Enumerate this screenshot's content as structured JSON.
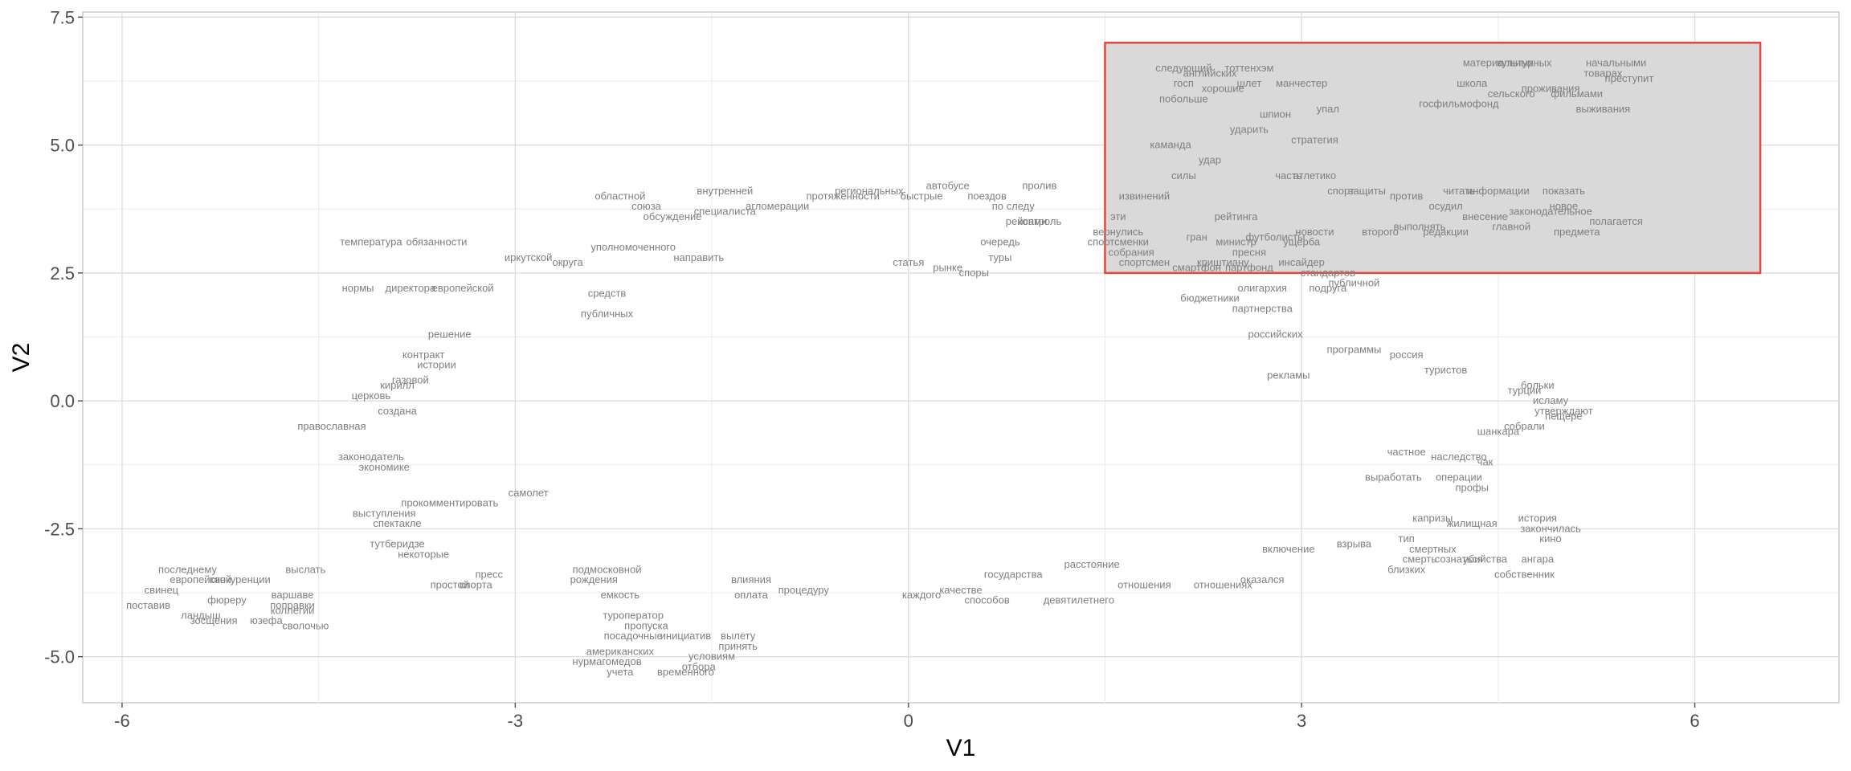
{
  "chart_data": {
    "type": "scatter",
    "title": "",
    "xlabel": "V1",
    "ylabel": "V2",
    "xlim": [
      -6.3,
      7.1
    ],
    "ylim": [
      -5.9,
      7.6
    ],
    "x_ticks": [
      -6,
      -3,
      0,
      3,
      6
    ],
    "x_tick_labels": [
      "-6",
      "-3",
      "0",
      "3",
      "6"
    ],
    "y_ticks": [
      -5.0,
      -2.5,
      0.0,
      2.5,
      5.0,
      7.5
    ],
    "y_tick_labels": [
      "-5.0",
      "-2.5",
      "0.0",
      "2.5",
      "5.0",
      "7.5"
    ],
    "grid": true,
    "label_color": "#7f7f7f",
    "highlight_region": {
      "x": [
        1.5,
        6.5
      ],
      "y": [
        2.5,
        7.0
      ],
      "fill": "#d9d9d9",
      "stroke": "#e8473b"
    },
    "points": [
      {
        "x": -5.5,
        "y": -3.3,
        "label": "последнему"
      },
      {
        "x": -5.4,
        "y": -3.5,
        "label": "европейской"
      },
      {
        "x": -5.1,
        "y": -3.5,
        "label": "конкуренции"
      },
      {
        "x": -4.6,
        "y": -3.3,
        "label": "выслать"
      },
      {
        "x": -5.7,
        "y": -3.7,
        "label": "свинец"
      },
      {
        "x": -5.2,
        "y": -3.9,
        "label": "фюреру"
      },
      {
        "x": -5.8,
        "y": -4.0,
        "label": "поставив"
      },
      {
        "x": -5.4,
        "y": -4.2,
        "label": "ландыш"
      },
      {
        "x": -5.3,
        "y": -4.3,
        "label": "зосщения"
      },
      {
        "x": -4.7,
        "y": -3.8,
        "label": "варшаве"
      },
      {
        "x": -4.7,
        "y": -4.0,
        "label": "поправки"
      },
      {
        "x": -4.7,
        "y": -4.1,
        "label": "коллегии"
      },
      {
        "x": -4.9,
        "y": -4.3,
        "label": "юзефа"
      },
      {
        "x": -4.6,
        "y": -4.4,
        "label": "сволочью"
      },
      {
        "x": -4.1,
        "y": 3.1,
        "label": "температура"
      },
      {
        "x": -3.6,
        "y": 3.1,
        "label": "обязанности"
      },
      {
        "x": -4.2,
        "y": 2.2,
        "label": "нормы"
      },
      {
        "x": -3.8,
        "y": 2.2,
        "label": "директора"
      },
      {
        "x": -3.4,
        "y": 2.2,
        "label": "европейской"
      },
      {
        "x": -2.9,
        "y": 2.8,
        "label": "иркутской"
      },
      {
        "x": -2.6,
        "y": 2.7,
        "label": "округа"
      },
      {
        "x": -4.4,
        "y": -0.5,
        "label": "православная"
      },
      {
        "x": -3.9,
        "y": -0.2,
        "label": "создана"
      },
      {
        "x": -4.1,
        "y": 0.1,
        "label": "церковь"
      },
      {
        "x": -3.9,
        "y": 0.3,
        "label": "кирилл"
      },
      {
        "x": -4.1,
        "y": -1.1,
        "label": "законодатель"
      },
      {
        "x": -4.0,
        "y": -1.3,
        "label": "экономике"
      },
      {
        "x": -4.0,
        "y": -2.2,
        "label": "выступления"
      },
      {
        "x": -3.9,
        "y": -2.4,
        "label": "спектакле"
      },
      {
        "x": -3.9,
        "y": -2.8,
        "label": "тутберидзе"
      },
      {
        "x": -3.7,
        "y": -3.0,
        "label": "некоторые"
      },
      {
        "x": -3.5,
        "y": -3.6,
        "label": "простой"
      },
      {
        "x": -3.3,
        "y": -3.6,
        "label": "спорта"
      },
      {
        "x": -3.5,
        "y": 1.3,
        "label": "решение"
      },
      {
        "x": -3.7,
        "y": 0.9,
        "label": "контракт"
      },
      {
        "x": -3.6,
        "y": 0.7,
        "label": "истории"
      },
      {
        "x": -3.8,
        "y": 0.4,
        "label": "газовой"
      },
      {
        "x": -3.5,
        "y": -2.0,
        "label": "прокомментировать"
      },
      {
        "x": -2.9,
        "y": -1.8,
        "label": "самолет"
      },
      {
        "x": -2.4,
        "y": -3.5,
        "label": "рождения"
      },
      {
        "x": -2.3,
        "y": -3.3,
        "label": "подмосковной"
      },
      {
        "x": -3.2,
        "y": -3.4,
        "label": "пресс"
      },
      {
        "x": -2.2,
        "y": 4.0,
        "label": "областной"
      },
      {
        "x": -2.0,
        "y": 3.8,
        "label": "союза"
      },
      {
        "x": -1.4,
        "y": 3.7,
        "label": "специалиста"
      },
      {
        "x": -1.8,
        "y": 3.6,
        "label": "обсуждение"
      },
      {
        "x": -2.1,
        "y": 3.0,
        "label": "уполномоченного"
      },
      {
        "x": -1.6,
        "y": 2.8,
        "label": "направить"
      },
      {
        "x": -2.3,
        "y": 2.1,
        "label": "средств"
      },
      {
        "x": -2.3,
        "y": 1.7,
        "label": "публичных"
      },
      {
        "x": -1.4,
        "y": 4.1,
        "label": "внутренней"
      },
      {
        "x": -1.0,
        "y": 3.8,
        "label": "агломерации"
      },
      {
        "x": -0.5,
        "y": 4.0,
        "label": "протяженности"
      },
      {
        "x": -0.3,
        "y": 4.1,
        "label": "региональных"
      },
      {
        "x": 0.3,
        "y": 4.2,
        "label": "автобусе"
      },
      {
        "x": 0.1,
        "y": 4.0,
        "label": "быстрые"
      },
      {
        "x": 0.6,
        "y": 4.0,
        "label": "поездов"
      },
      {
        "x": 0.8,
        "y": 3.8,
        "label": "по следу"
      },
      {
        "x": 0.9,
        "y": 3.5,
        "label": "рейсами"
      },
      {
        "x": 1.0,
        "y": 3.5,
        "label": "контроль"
      },
      {
        "x": 0.7,
        "y": 3.1,
        "label": "очередь"
      },
      {
        "x": 0.3,
        "y": 2.6,
        "label": "рынке"
      },
      {
        "x": 0.0,
        "y": 2.7,
        "label": "статья"
      },
      {
        "x": 0.7,
        "y": 2.8,
        "label": "туры"
      },
      {
        "x": 0.5,
        "y": 2.5,
        "label": "споры"
      },
      {
        "x": 1.0,
        "y": 4.2,
        "label": "пролив"
      },
      {
        "x": -1.2,
        "y": -3.5,
        "label": "влияния"
      },
      {
        "x": -2.2,
        "y": -3.8,
        "label": "емкость"
      },
      {
        "x": -2.1,
        "y": -4.2,
        "label": "туроператор"
      },
      {
        "x": -2.0,
        "y": -4.4,
        "label": "пропуска"
      },
      {
        "x": -2.1,
        "y": -4.6,
        "label": "посадочные"
      },
      {
        "x": -1.7,
        "y": -4.6,
        "label": "инициатив"
      },
      {
        "x": -2.2,
        "y": -4.9,
        "label": "американских"
      },
      {
        "x": -2.3,
        "y": -5.1,
        "label": "нурмагомедов"
      },
      {
        "x": -1.5,
        "y": -5.0,
        "label": "условиям"
      },
      {
        "x": -1.3,
        "y": -4.6,
        "label": "вылету"
      },
      {
        "x": -1.3,
        "y": -4.8,
        "label": "принять"
      },
      {
        "x": -2.2,
        "y": -5.3,
        "label": "учета"
      },
      {
        "x": -1.7,
        "y": -5.3,
        "label": "временного"
      },
      {
        "x": -1.6,
        "y": -5.2,
        "label": "отбора"
      },
      {
        "x": -0.8,
        "y": -3.7,
        "label": "процедуру"
      },
      {
        "x": -1.2,
        "y": -3.8,
        "label": "оплата"
      },
      {
        "x": 0.1,
        "y": -3.8,
        "label": "каждого"
      },
      {
        "x": 0.4,
        "y": -3.7,
        "label": "качестве"
      },
      {
        "x": 0.6,
        "y": -3.9,
        "label": "способов"
      },
      {
        "x": 1.3,
        "y": -3.9,
        "label": "девятилетнего"
      },
      {
        "x": 1.4,
        "y": -3.2,
        "label": "расстояние"
      },
      {
        "x": 0.8,
        "y": -3.4,
        "label": "государства"
      },
      {
        "x": 1.8,
        "y": -3.6,
        "label": "отношения"
      },
      {
        "x": 2.4,
        "y": -3.6,
        "label": "отношениях"
      },
      {
        "x": 2.7,
        "y": -3.5,
        "label": "оказался"
      },
      {
        "x": 2.9,
        "y": -2.9,
        "label": "включение"
      },
      {
        "x": 3.4,
        "y": -2.8,
        "label": "взрыва"
      },
      {
        "x": 3.8,
        "y": -2.7,
        "label": "тип"
      },
      {
        "x": 4.0,
        "y": -2.9,
        "label": "смертных"
      },
      {
        "x": 3.9,
        "y": -3.1,
        "label": "смерть"
      },
      {
        "x": 3.8,
        "y": -3.3,
        "label": "близких"
      },
      {
        "x": 4.2,
        "y": -3.1,
        "label": "сознаться"
      },
      {
        "x": 4.4,
        "y": -3.1,
        "label": "убийства"
      },
      {
        "x": 4.7,
        "y": -3.4,
        "label": "собственник"
      },
      {
        "x": 4.8,
        "y": -3.1,
        "label": "ангара"
      },
      {
        "x": 4.9,
        "y": -2.7,
        "label": "кино"
      },
      {
        "x": 4.9,
        "y": -2.5,
        "label": "закончилась"
      },
      {
        "x": 4.8,
        "y": -2.3,
        "label": "история"
      },
      {
        "x": 4.3,
        "y": -2.4,
        "label": "жилищная"
      },
      {
        "x": 4.0,
        "y": -2.3,
        "label": "капризы"
      },
      {
        "x": 4.3,
        "y": -1.7,
        "label": "профы"
      },
      {
        "x": 3.7,
        "y": -1.5,
        "label": "выработать"
      },
      {
        "x": 4.2,
        "y": -1.5,
        "label": "операции"
      },
      {
        "x": 3.8,
        "y": -1.0,
        "label": "частное"
      },
      {
        "x": 4.2,
        "y": -1.1,
        "label": "наследство"
      },
      {
        "x": 4.4,
        "y": -1.2,
        "label": "чак"
      },
      {
        "x": 4.5,
        "y": -0.6,
        "label": "шанкара"
      },
      {
        "x": 4.7,
        "y": -0.5,
        "label": "собрали"
      },
      {
        "x": 5.0,
        "y": -0.3,
        "label": "пещере"
      },
      {
        "x": 5.0,
        "y": -0.2,
        "label": "утверждают"
      },
      {
        "x": 4.7,
        "y": 0.2,
        "label": "турции"
      },
      {
        "x": 4.9,
        "y": 0.0,
        "label": "исламу"
      },
      {
        "x": 4.8,
        "y": 0.3,
        "label": "больки"
      },
      {
        "x": 4.1,
        "y": 0.6,
        "label": "туристов"
      },
      {
        "x": 3.8,
        "y": 0.9,
        "label": "россия"
      },
      {
        "x": 3.4,
        "y": 1.0,
        "label": "программы"
      },
      {
        "x": 2.8,
        "y": 1.3,
        "label": "российских"
      },
      {
        "x": 2.9,
        "y": 0.5,
        "label": "рекламы"
      },
      {
        "x": 2.7,
        "y": 1.8,
        "label": "партнерства"
      },
      {
        "x": 2.3,
        "y": 2.0,
        "label": "бюджетники"
      },
      {
        "x": 2.7,
        "y": 2.2,
        "label": "олигархия"
      },
      {
        "x": 3.2,
        "y": 2.2,
        "label": "подруга"
      },
      {
        "x": 3.4,
        "y": 2.3,
        "label": "публичной"
      },
      {
        "x": 3.2,
        "y": 2.5,
        "label": "стандартов"
      },
      {
        "x": 3.0,
        "y": 2.7,
        "label": "инсайдер"
      },
      {
        "x": 2.6,
        "y": 2.6,
        "label": "партфонд"
      },
      {
        "x": 2.2,
        "y": 2.6,
        "label": "смартфон"
      },
      {
        "x": 1.8,
        "y": 2.7,
        "label": "спортсмен"
      },
      {
        "x": 1.6,
        "y": 3.6,
        "label": "эти"
      },
      {
        "x": 1.6,
        "y": 3.3,
        "label": "вернулись"
      },
      {
        "x": 1.6,
        "y": 3.1,
        "label": "спортсменки"
      },
      {
        "x": 1.7,
        "y": 2.9,
        "label": "собрания"
      },
      {
        "x": 1.8,
        "y": 4.0,
        "label": "извинений"
      },
      {
        "x": 2.2,
        "y": 3.2,
        "label": "гран"
      },
      {
        "x": 2.5,
        "y": 3.1,
        "label": "министр"
      },
      {
        "x": 2.8,
        "y": 3.2,
        "label": "футболисты"
      },
      {
        "x": 2.6,
        "y": 2.9,
        "label": "пресня"
      },
      {
        "x": 2.4,
        "y": 2.7,
        "label": "криштиану"
      },
      {
        "x": 3.0,
        "y": 3.1,
        "label": "ущерба"
      },
      {
        "x": 3.1,
        "y": 3.3,
        "label": "новости"
      },
      {
        "x": 3.6,
        "y": 3.3,
        "label": "второго"
      },
      {
        "x": 3.9,
        "y": 3.4,
        "label": "выполнять"
      },
      {
        "x": 3.8,
        "y": 4.0,
        "label": "против"
      },
      {
        "x": 3.3,
        "y": 4.1,
        "label": "спорт"
      },
      {
        "x": 3.5,
        "y": 4.1,
        "label": "защиты"
      },
      {
        "x": 2.9,
        "y": 4.4,
        "label": "часть"
      },
      {
        "x": 2.1,
        "y": 4.4,
        "label": "силы"
      },
      {
        "x": 2.3,
        "y": 4.7,
        "label": "удар"
      },
      {
        "x": 2.0,
        "y": 5.0,
        "label": "каманда"
      },
      {
        "x": 2.6,
        "y": 5.3,
        "label": "ударить"
      },
      {
        "x": 2.8,
        "y": 5.6,
        "label": "шпион"
      },
      {
        "x": 3.2,
        "y": 5.7,
        "label": "упал"
      },
      {
        "x": 2.1,
        "y": 5.9,
        "label": "побольше"
      },
      {
        "x": 2.4,
        "y": 6.1,
        "label": "хорошие"
      },
      {
        "x": 2.6,
        "y": 6.2,
        "label": "шлет"
      },
      {
        "x": 3.0,
        "y": 6.2,
        "label": "манчестер"
      },
      {
        "x": 2.1,
        "y": 6.2,
        "label": "госп"
      },
      {
        "x": 2.3,
        "y": 6.4,
        "label": "английских"
      },
      {
        "x": 2.1,
        "y": 6.5,
        "label": "следующий"
      },
      {
        "x": 2.6,
        "y": 6.5,
        "label": "тоттенхэм"
      },
      {
        "x": 4.5,
        "y": 6.6,
        "label": "материальных"
      },
      {
        "x": 4.7,
        "y": 6.6,
        "label": "культурных"
      },
      {
        "x": 5.4,
        "y": 6.6,
        "label": "начальными"
      },
      {
        "x": 5.3,
        "y": 6.4,
        "label": "товарах"
      },
      {
        "x": 5.5,
        "y": 6.3,
        "label": "преступит"
      },
      {
        "x": 4.3,
        "y": 6.2,
        "label": "школа"
      },
      {
        "x": 4.9,
        "y": 6.1,
        "label": "проживания"
      },
      {
        "x": 5.1,
        "y": 6.0,
        "label": "фильмами"
      },
      {
        "x": 4.6,
        "y": 6.0,
        "label": "сельского"
      },
      {
        "x": 4.2,
        "y": 5.8,
        "label": "госфильмофонд"
      },
      {
        "x": 5.3,
        "y": 5.7,
        "label": "выживания"
      },
      {
        "x": 4.2,
        "y": 4.1,
        "label": "читать"
      },
      {
        "x": 4.5,
        "y": 4.1,
        "label": "информации"
      },
      {
        "x": 5.0,
        "y": 4.1,
        "label": "показать"
      },
      {
        "x": 4.1,
        "y": 3.8,
        "label": "осудил"
      },
      {
        "x": 4.4,
        "y": 3.6,
        "label": "внесение"
      },
      {
        "x": 5.0,
        "y": 3.8,
        "label": "новое"
      },
      {
        "x": 4.9,
        "y": 3.7,
        "label": "законодательное"
      },
      {
        "x": 5.4,
        "y": 3.5,
        "label": "полагается"
      },
      {
        "x": 4.1,
        "y": 3.3,
        "label": "редакции"
      },
      {
        "x": 4.6,
        "y": 3.4,
        "label": "главной"
      },
      {
        "x": 5.1,
        "y": 3.3,
        "label": "предмета"
      },
      {
        "x": 3.1,
        "y": 5.1,
        "label": "стратегия"
      },
      {
        "x": 3.1,
        "y": 4.4,
        "label": "атлетико"
      },
      {
        "x": 2.5,
        "y": 3.6,
        "label": "рейтинга"
      }
    ]
  }
}
